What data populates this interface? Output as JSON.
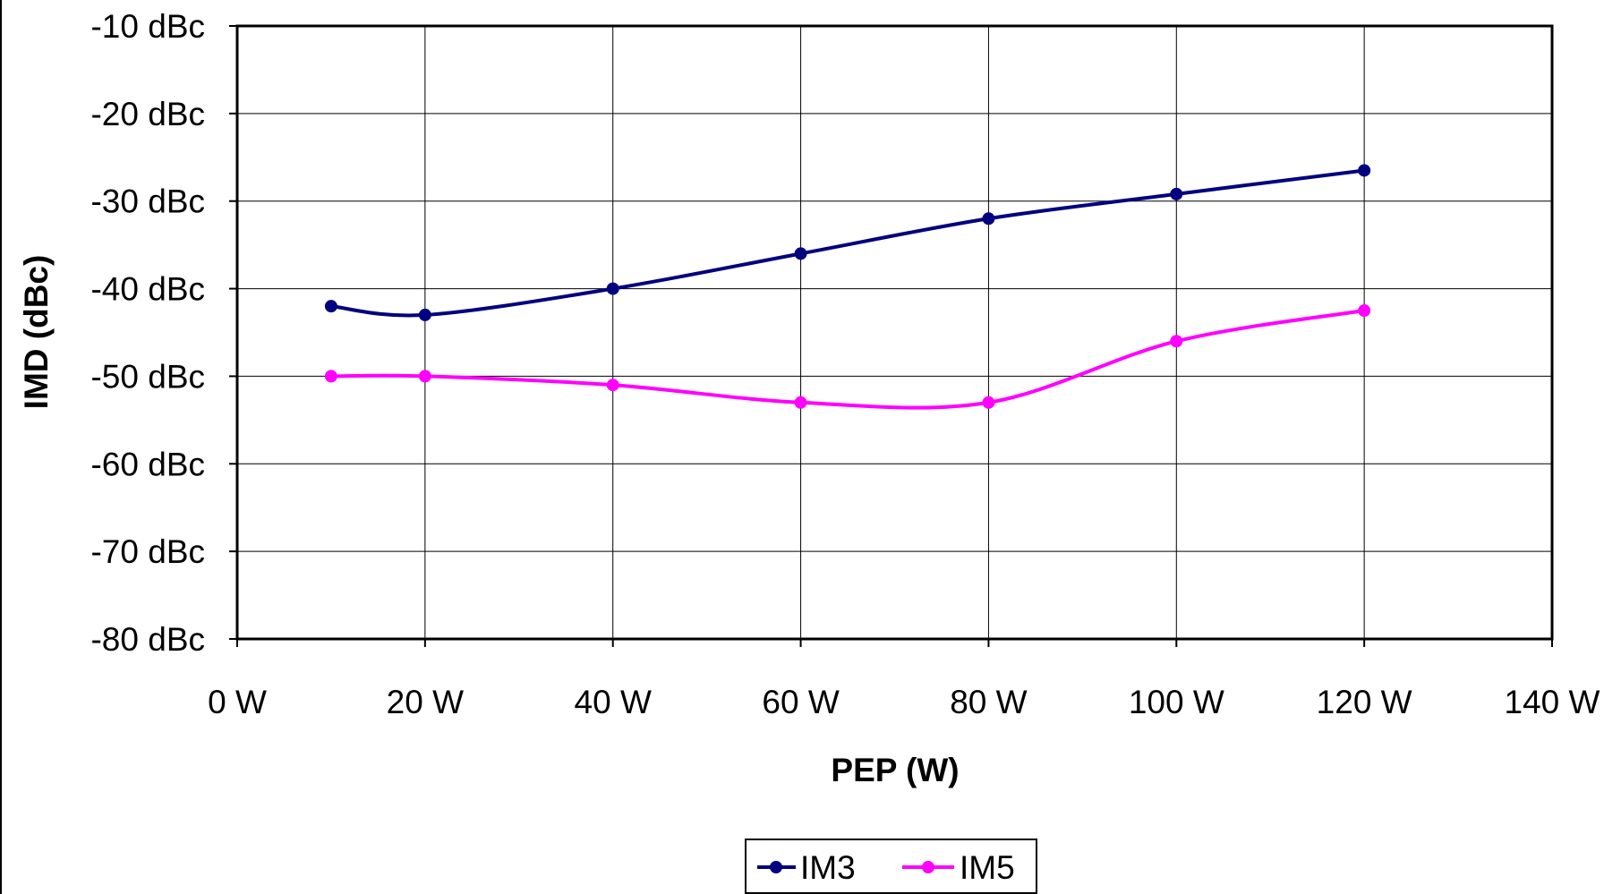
{
  "chart_data": {
    "type": "scatter",
    "xlabel": "PEP (W)",
    "ylabel": "IMD (dBc)",
    "xlim": [
      0,
      140
    ],
    "ylim": [
      -80,
      -10
    ],
    "x_ticks": [
      0,
      20,
      40,
      60,
      80,
      100,
      120,
      140
    ],
    "x_tick_labels": [
      "0 W",
      "20 W",
      "40 W",
      "60 W",
      "80 W",
      "100 W",
      "120 W",
      "140 W"
    ],
    "y_ticks": [
      -10,
      -20,
      -30,
      -40,
      -50,
      -60,
      -70,
      -80
    ],
    "y_tick_labels": [
      "-10 dBc",
      "-20 dBc",
      "-30 dBc",
      "-40 dBc",
      "-50 dBc",
      "-60 dBc",
      "-70 dBc",
      "-80 dBc"
    ],
    "grid": true,
    "smooth_lines": true,
    "legend_position": "bottom-center",
    "series": [
      {
        "name": "IM3",
        "color": "#000080",
        "x": [
          10,
          20,
          40,
          60,
          80,
          100,
          120
        ],
        "y": [
          -42,
          -43,
          -40,
          -36,
          -32,
          -29.2,
          -26.5
        ]
      },
      {
        "name": "IM5",
        "color": "#FF00FF",
        "x": [
          10,
          20,
          40,
          60,
          80,
          100,
          120
        ],
        "y": [
          -50,
          -50,
          -51,
          -53,
          -53,
          -46,
          -42.5
        ]
      }
    ]
  }
}
